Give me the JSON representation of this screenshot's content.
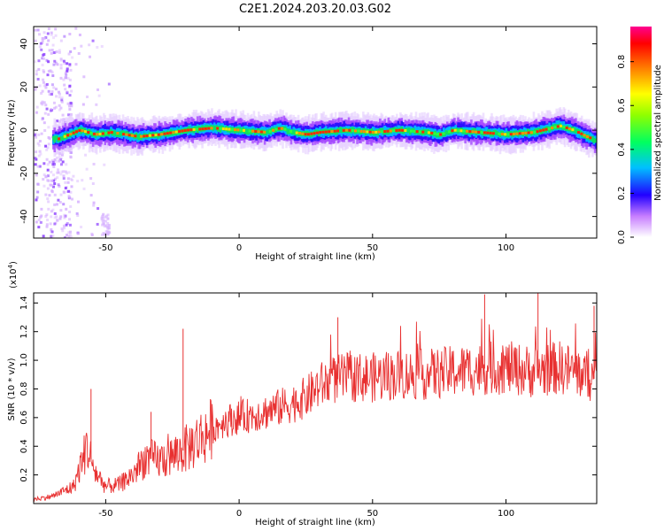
{
  "title": "C2E1.2024.203.20.03.G02",
  "chart_data": [
    {
      "type": "heatmap",
      "xlabel": "Height of straight line (km)",
      "ylabel": "Frequency (Hz)",
      "xlim": [
        -77,
        134
      ],
      "ylim": [
        -50,
        48
      ],
      "x_ticks": [
        "-50",
        "0",
        "50",
        "100"
      ],
      "y_ticks": [
        "-40",
        "-20",
        "0",
        "20",
        "40"
      ],
      "colorbar": {
        "label": "Normalized spectral amplitude",
        "range": [
          0,
          0.96
        ],
        "ticks": [
          "0.0",
          "0.2",
          "0.4",
          "0.6",
          "0.8"
        ]
      },
      "ridge": {
        "x": [
          -68,
          -60,
          -54,
          -48,
          -38,
          -30,
          -20,
          -10,
          0,
          10,
          15,
          20,
          25,
          30,
          40,
          50,
          60,
          70,
          75,
          80,
          90,
          100,
          110,
          120,
          125,
          130,
          134
        ],
        "y": [
          -4,
          0,
          -2,
          -1,
          -3,
          -2,
          0,
          1,
          0,
          -1,
          1,
          -1,
          -2,
          -1,
          0,
          -1,
          0,
          -1,
          -2,
          0,
          -1,
          -2,
          -1,
          2,
          0,
          -3,
          -5
        ]
      }
    },
    {
      "type": "line",
      "xlabel": "Height of straight line (km)",
      "ylabel": "SNR (10 * v/v)",
      "y_multiplier": "(x10",
      "y_multiplier_exp": "4",
      "y_multiplier_close": ")",
      "xlim": [
        -77,
        134
      ],
      "ylim": [
        0,
        1.47
      ],
      "x_ticks": [
        "-50",
        "0",
        "50",
        "100"
      ],
      "y_ticks": [
        "0.2",
        "0.4",
        "0.6",
        "0.8",
        "1.0",
        "1.2",
        "1.4"
      ],
      "color": "#e83030",
      "trend": {
        "x": [
          -77,
          -70,
          -62,
          -57,
          -54,
          -50,
          -45,
          -40,
          -35,
          -30,
          -25,
          -20,
          -15,
          -10,
          -5,
          0,
          5,
          10,
          15,
          20,
          25,
          30,
          35,
          40,
          50,
          60,
          70,
          80,
          90,
          100,
          110,
          120,
          130,
          134
        ],
        "y": [
          0.03,
          0.05,
          0.12,
          0.4,
          0.22,
          0.12,
          0.13,
          0.2,
          0.32,
          0.3,
          0.33,
          0.38,
          0.45,
          0.52,
          0.58,
          0.6,
          0.62,
          0.64,
          0.67,
          0.7,
          0.74,
          0.82,
          0.86,
          0.88,
          0.88,
          0.9,
          0.9,
          0.92,
          0.94,
          0.95,
          0.92,
          0.95,
          0.9,
          0.86
        ]
      },
      "spikes": [
        {
          "x": -55.5,
          "y": 0.8
        },
        {
          "x": -33,
          "y": 0.64
        },
        {
          "x": -21,
          "y": 1.22
        },
        {
          "x": 37,
          "y": 1.3
        },
        {
          "x": 92,
          "y": 1.46
        },
        {
          "x": 112,
          "y": 1.47
        },
        {
          "x": 133,
          "y": 1.38
        }
      ]
    }
  ]
}
